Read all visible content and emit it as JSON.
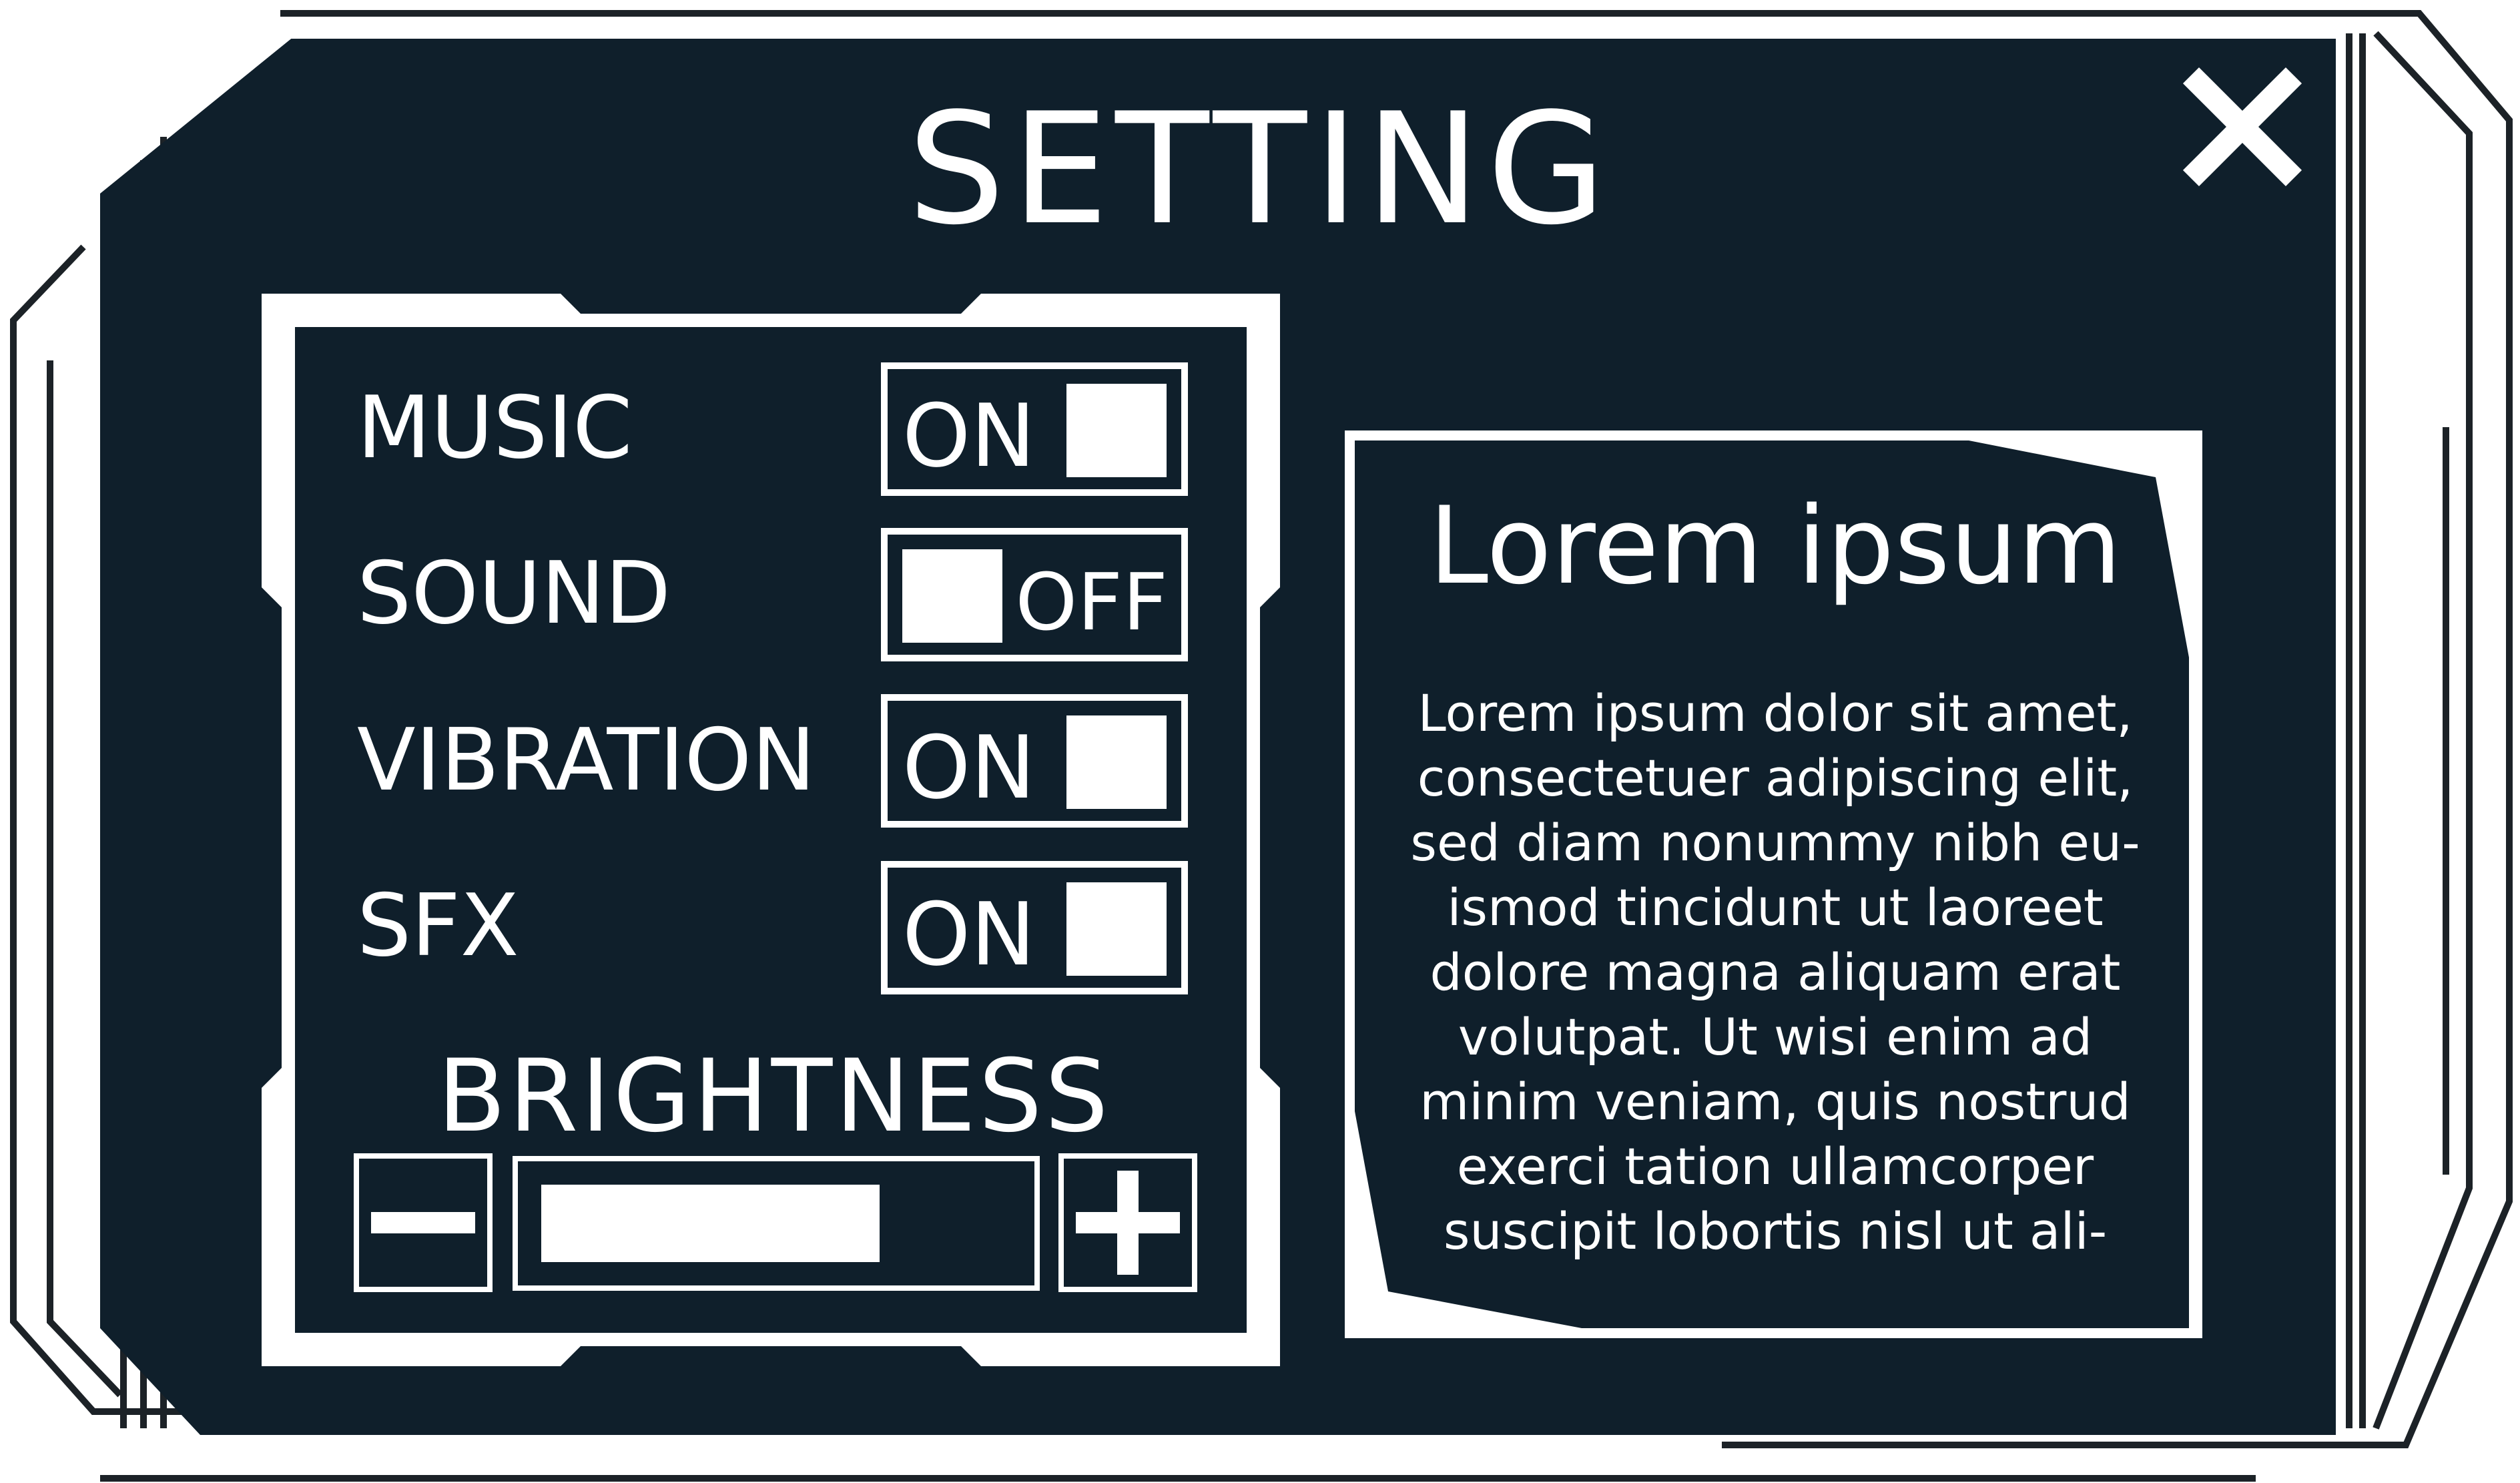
{
  "panel": {
    "title": "SETTING",
    "colors": {
      "background": "#0f1f2b",
      "foreground": "#ffffff"
    },
    "close_icon": "close-icon"
  },
  "settings": [
    {
      "label": "MUSIC",
      "state": "ON",
      "on": true
    },
    {
      "label": "SOUND",
      "state": "OFF",
      "on": false
    },
    {
      "label": "VIBRATION",
      "state": "ON",
      "on": true
    },
    {
      "label": "SFX",
      "state": "ON",
      "on": true
    }
  ],
  "brightness": {
    "label": "BRIGHTNESS",
    "level_percent": 72,
    "minus_icon": "minus-icon",
    "plus_icon": "plus-icon"
  },
  "info": {
    "title": "Lorem ipsum",
    "body_lines": [
      "Lorem ipsum dolor sit amet,",
      "consectetuer adipiscing elit,",
      "sed diam nonummy nibh eu-",
      "ismod tincidunt ut laoreet",
      "dolore magna aliquam erat",
      "volutpat. Ut wisi enim ad",
      "minim veniam, quis nostrud",
      "exerci tation ullamcorper",
      "suscipit lobortis nisl ut ali-"
    ]
  }
}
